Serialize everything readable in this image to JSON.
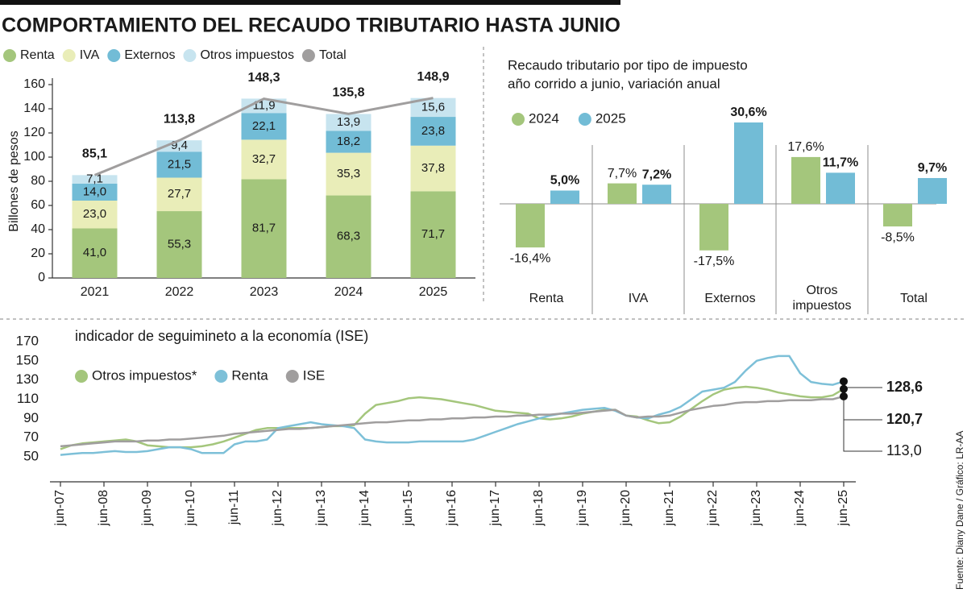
{
  "title": "COMPORTAMIENTO DEL RECAUDO TRIBUTARIO HASTA JUNIO",
  "source": "Fuente: Diany Dane / Gráfico: LR-AA",
  "chart_data": [
    {
      "type": "stacked_bar",
      "y_label": "Billones de pesos",
      "categories": [
        "2021",
        "2022",
        "2023",
        "2024",
        "2025"
      ],
      "series": [
        {
          "name": "Renta",
          "color": "#a4c67c",
          "values": [
            41.0,
            55.3,
            81.7,
            68.3,
            71.7
          ],
          "value_labels": [
            "41,0",
            "55,3",
            "81,7",
            "68,3",
            "71,7"
          ]
        },
        {
          "name": "IVA",
          "color": "#e9edb8",
          "values": [
            23.0,
            27.7,
            32.7,
            35.3,
            37.8
          ],
          "value_labels": [
            "23,0",
            "27,7",
            "32,7",
            "35,3",
            "37,8"
          ]
        },
        {
          "name": "Externos",
          "color": "#72bcd6",
          "values": [
            14.0,
            21.5,
            22.1,
            18.2,
            23.8
          ],
          "value_labels": [
            "14,0",
            "21,5",
            "22,1",
            "18,2",
            "23,8"
          ]
        },
        {
          "name": "Otros impuestos",
          "color": "#c7e4ef",
          "values": [
            7.1,
            9.4,
            11.9,
            13.9,
            15.6
          ],
          "value_labels": [
            "7,1",
            "9,4",
            "11,9",
            "13,9",
            "15,6"
          ]
        },
        {
          "name": "Total",
          "type": "line",
          "color": "#a09e9e",
          "values": [
            85.1,
            113.8,
            148.3,
            135.8,
            148.9
          ],
          "value_labels": [
            "85,1",
            "113,8",
            "148,3",
            "135,8",
            "148,9"
          ]
        }
      ],
      "ylim": [
        0,
        160
      ],
      "yticks": [
        0,
        20,
        40,
        60,
        80,
        100,
        120,
        140,
        160
      ]
    },
    {
      "type": "bar",
      "title": "Recaudo tributario por tipo de impuesto",
      "subtitle": "año corrido a junio, variación anual",
      "categories": [
        "Renta",
        "IVA",
        "Externos",
        "Otros impuestos",
        "Total"
      ],
      "series": [
        {
          "name": "2024",
          "color": "#a4c67c",
          "values": [
            -16.4,
            7.7,
            -17.5,
            17.6,
            -8.5
          ],
          "value_labels": [
            "-16,4%",
            "7,7%",
            "-17,5%",
            "17,6%",
            "-8,5%"
          ]
        },
        {
          "name": "2025",
          "color": "#72bcd6",
          "values": [
            5.0,
            7.2,
            30.6,
            11.7,
            9.7
          ],
          "value_labels": [
            "5,0%",
            "7,2%",
            "30,6%",
            "11,7%",
            "9,7%"
          ]
        }
      ]
    },
    {
      "type": "line",
      "title": "indicador de seguimineto a la economía (ISE)",
      "categories": [
        "jun-07",
        null,
        null,
        null,
        "jun-08",
        null,
        null,
        null,
        "jun-09",
        null,
        null,
        null,
        "jun-10",
        null,
        null,
        null,
        "jun-11",
        null,
        null,
        null,
        "jun-12",
        null,
        null,
        null,
        "jun-13",
        null,
        null,
        null,
        "jun-14",
        null,
        null,
        null,
        "jun-15",
        null,
        null,
        null,
        "jun-16",
        null,
        null,
        null,
        "jun-17",
        null,
        null,
        null,
        "jun-18",
        null,
        null,
        null,
        "jun-19",
        null,
        null,
        null,
        "jun-20",
        null,
        null,
        null,
        "jun-21",
        null,
        null,
        null,
        "jun-22",
        null,
        null,
        null,
        "jun-23",
        null,
        null,
        null,
        "jun-24",
        null,
        null,
        null,
        "jun-25"
      ],
      "series": [
        {
          "name": "Otros impuestos*",
          "color": "#a4c67c",
          "values": [
            58,
            62,
            64,
            65,
            66,
            67,
            68,
            66,
            62,
            61,
            60,
            60,
            60,
            61,
            63,
            66,
            70,
            74,
            78,
            80,
            80,
            80,
            80,
            80,
            81,
            82,
            82,
            83,
            95,
            104,
            106,
            108,
            111,
            112,
            111,
            110,
            108,
            106,
            104,
            101,
            98,
            97,
            96,
            95,
            90,
            89,
            90,
            92,
            95,
            97,
            99,
            99,
            93,
            92,
            88,
            85,
            86,
            92,
            100,
            108,
            115,
            120,
            122,
            123,
            122,
            120,
            117,
            115,
            113,
            112,
            112,
            114,
            120.7
          ],
          "value_labels": [
            null,
            null,
            null,
            null,
            null,
            null,
            null,
            null,
            null,
            null,
            null,
            null,
            null,
            null,
            null,
            null,
            null,
            null,
            null,
            null,
            null,
            null,
            null,
            null,
            null,
            null,
            null,
            null,
            null,
            null,
            null,
            null,
            null,
            null,
            null,
            null,
            null,
            null,
            null,
            null,
            null,
            null,
            null,
            null,
            null,
            null,
            null,
            null,
            null,
            null,
            null,
            null,
            null,
            null,
            null,
            null,
            null,
            null,
            null,
            null,
            null,
            null,
            null,
            null,
            null,
            null,
            null,
            null,
            null,
            null,
            null,
            null,
            "120,7"
          ]
        },
        {
          "name": "Renta",
          "color": "#7dc0d8",
          "values": [
            52,
            53,
            54,
            54,
            55,
            56,
            55,
            55,
            56,
            58,
            60,
            60,
            58,
            54,
            54,
            54,
            63,
            66,
            66,
            68,
            80,
            82,
            84,
            86,
            84,
            83,
            82,
            80,
            68,
            66,
            65,
            65,
            65,
            66,
            66,
            66,
            66,
            66,
            68,
            72,
            76,
            80,
            84,
            87,
            90,
            93,
            95,
            97,
            99,
            100,
            101,
            98,
            93,
            91,
            90,
            94,
            97,
            102,
            110,
            118,
            120,
            122,
            128,
            140,
            150,
            153,
            155,
            155,
            137,
            128,
            126,
            125,
            128.6
          ],
          "value_labels": [
            null,
            null,
            null,
            null,
            null,
            null,
            null,
            null,
            null,
            null,
            null,
            null,
            null,
            null,
            null,
            null,
            null,
            null,
            null,
            null,
            null,
            null,
            null,
            null,
            null,
            null,
            null,
            null,
            null,
            null,
            null,
            null,
            null,
            null,
            null,
            null,
            null,
            null,
            null,
            null,
            null,
            null,
            null,
            null,
            null,
            null,
            null,
            null,
            null,
            null,
            null,
            null,
            null,
            null,
            null,
            null,
            null,
            null,
            null,
            null,
            null,
            null,
            null,
            null,
            null,
            null,
            null,
            null,
            null,
            null,
            null,
            null,
            "128,6"
          ]
        },
        {
          "name": "ISE",
          "color": "#a09e9e",
          "values": [
            61,
            62,
            63,
            64,
            65,
            66,
            66,
            66,
            67,
            67,
            68,
            68,
            69,
            70,
            71,
            72,
            74,
            75,
            76,
            77,
            78,
            79,
            79,
            80,
            81,
            82,
            83,
            84,
            85,
            86,
            86,
            87,
            88,
            88,
            89,
            89,
            90,
            90,
            91,
            91,
            92,
            92,
            93,
            93,
            94,
            94,
            95,
            95,
            96,
            97,
            98,
            99,
            93,
            91,
            92,
            92,
            93,
            96,
            99,
            101,
            103,
            104,
            106,
            107,
            107,
            108,
            108,
            109,
            109,
            109,
            110,
            110,
            113.0
          ],
          "value_labels": [
            null,
            null,
            null,
            null,
            null,
            null,
            null,
            null,
            null,
            null,
            null,
            null,
            null,
            null,
            null,
            null,
            null,
            null,
            null,
            null,
            null,
            null,
            null,
            null,
            null,
            null,
            null,
            null,
            null,
            null,
            null,
            null,
            null,
            null,
            null,
            null,
            null,
            null,
            null,
            null,
            null,
            null,
            null,
            null,
            null,
            null,
            null,
            null,
            null,
            null,
            null,
            null,
            null,
            null,
            null,
            null,
            null,
            null,
            null,
            null,
            null,
            null,
            null,
            null,
            null,
            null,
            null,
            null,
            null,
            null,
            null,
            null,
            "113,0"
          ]
        }
      ],
      "ylim": [
        50,
        170
      ],
      "yticks": [
        50,
        70,
        90,
        110,
        130,
        150,
        170
      ]
    }
  ]
}
